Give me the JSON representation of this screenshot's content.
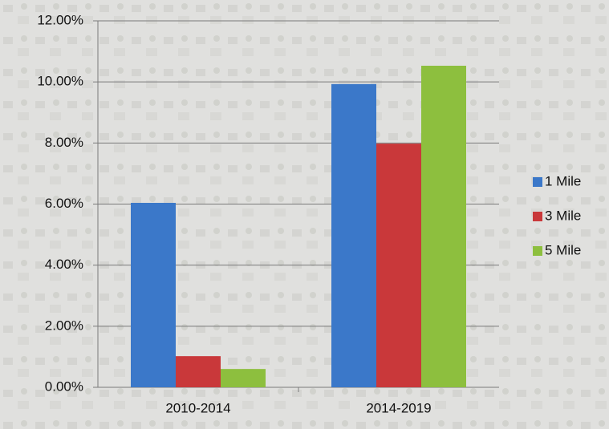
{
  "chart_data": {
    "type": "bar",
    "categories": [
      "2010-2014",
      "2014-2019"
    ],
    "series": [
      {
        "name": "1 Mile",
        "color": "#3b78c9",
        "values": [
          6.04,
          9.93
        ]
      },
      {
        "name": "3 Mile",
        "color": "#c9383a",
        "values": [
          1.02,
          7.98
        ]
      },
      {
        "name": "5 Mile",
        "color": "#8dbf3e",
        "values": [
          0.6,
          10.53
        ]
      }
    ],
    "ylim": [
      0,
      12
    ],
    "yticks": [
      {
        "value": 0,
        "label": "0.00%"
      },
      {
        "value": 2,
        "label": "2.00%"
      },
      {
        "value": 4,
        "label": "4.00%"
      },
      {
        "value": 6,
        "label": "6.00%"
      },
      {
        "value": 8,
        "label": "8.00%"
      },
      {
        "value": 10,
        "label": "10.00%"
      },
      {
        "value": 12,
        "label": "12.00%"
      }
    ],
    "grid": true,
    "legend": "right"
  }
}
